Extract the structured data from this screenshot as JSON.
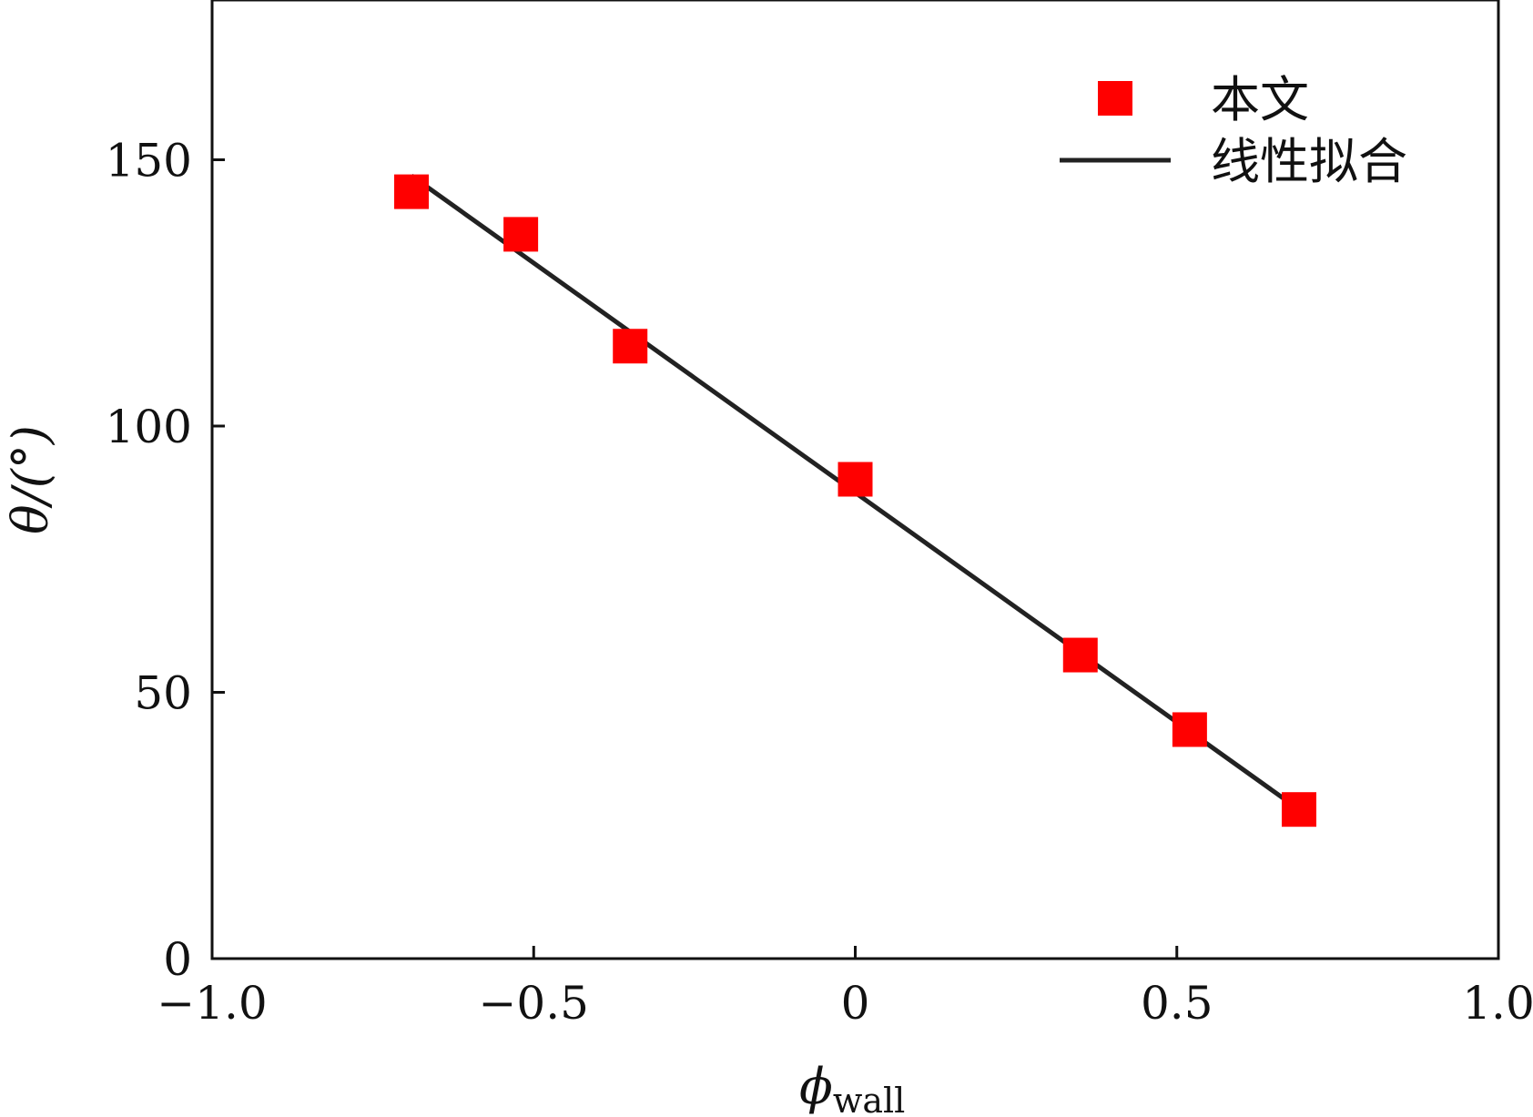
{
  "chart_data": {
    "type": "scatter",
    "title": "",
    "xlabel_main": "ϕ",
    "xlabel_sub": "wall",
    "ylabel": "θ/(°)",
    "xlim": [
      -1.0,
      1.0
    ],
    "ylim": [
      0,
      180
    ],
    "xticks": [
      -1.0,
      -0.5,
      0,
      0.5,
      1.0
    ],
    "xtick_labels": [
      "−1.0",
      "−0.5",
      "0",
      "0.5",
      "1.0"
    ],
    "yticks": [
      0,
      50,
      100,
      150
    ],
    "ytick_labels": [
      "0",
      "50",
      "100",
      "150"
    ],
    "grid": false,
    "legend_position": "top-right",
    "series": [
      {
        "name": "本文",
        "kind": "scatter",
        "marker": "square",
        "color": "#ff0000",
        "x": [
          -0.69,
          -0.52,
          -0.35,
          0.0,
          0.35,
          0.52,
          0.69
        ],
        "y": [
          144,
          136,
          115,
          90,
          57,
          43,
          28
        ]
      },
      {
        "name": "线性拟合",
        "kind": "line",
        "color": "#222222",
        "x": [
          -0.69,
          0.69
        ],
        "y": [
          147,
          28
        ]
      }
    ]
  }
}
